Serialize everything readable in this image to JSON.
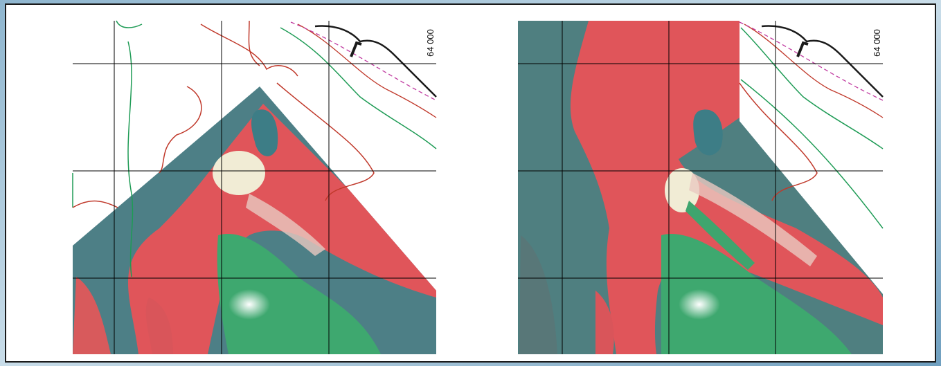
{
  "panels": [
    {
      "grid_label": "64 000"
    },
    {
      "grid_label": "64 000"
    }
  ]
}
